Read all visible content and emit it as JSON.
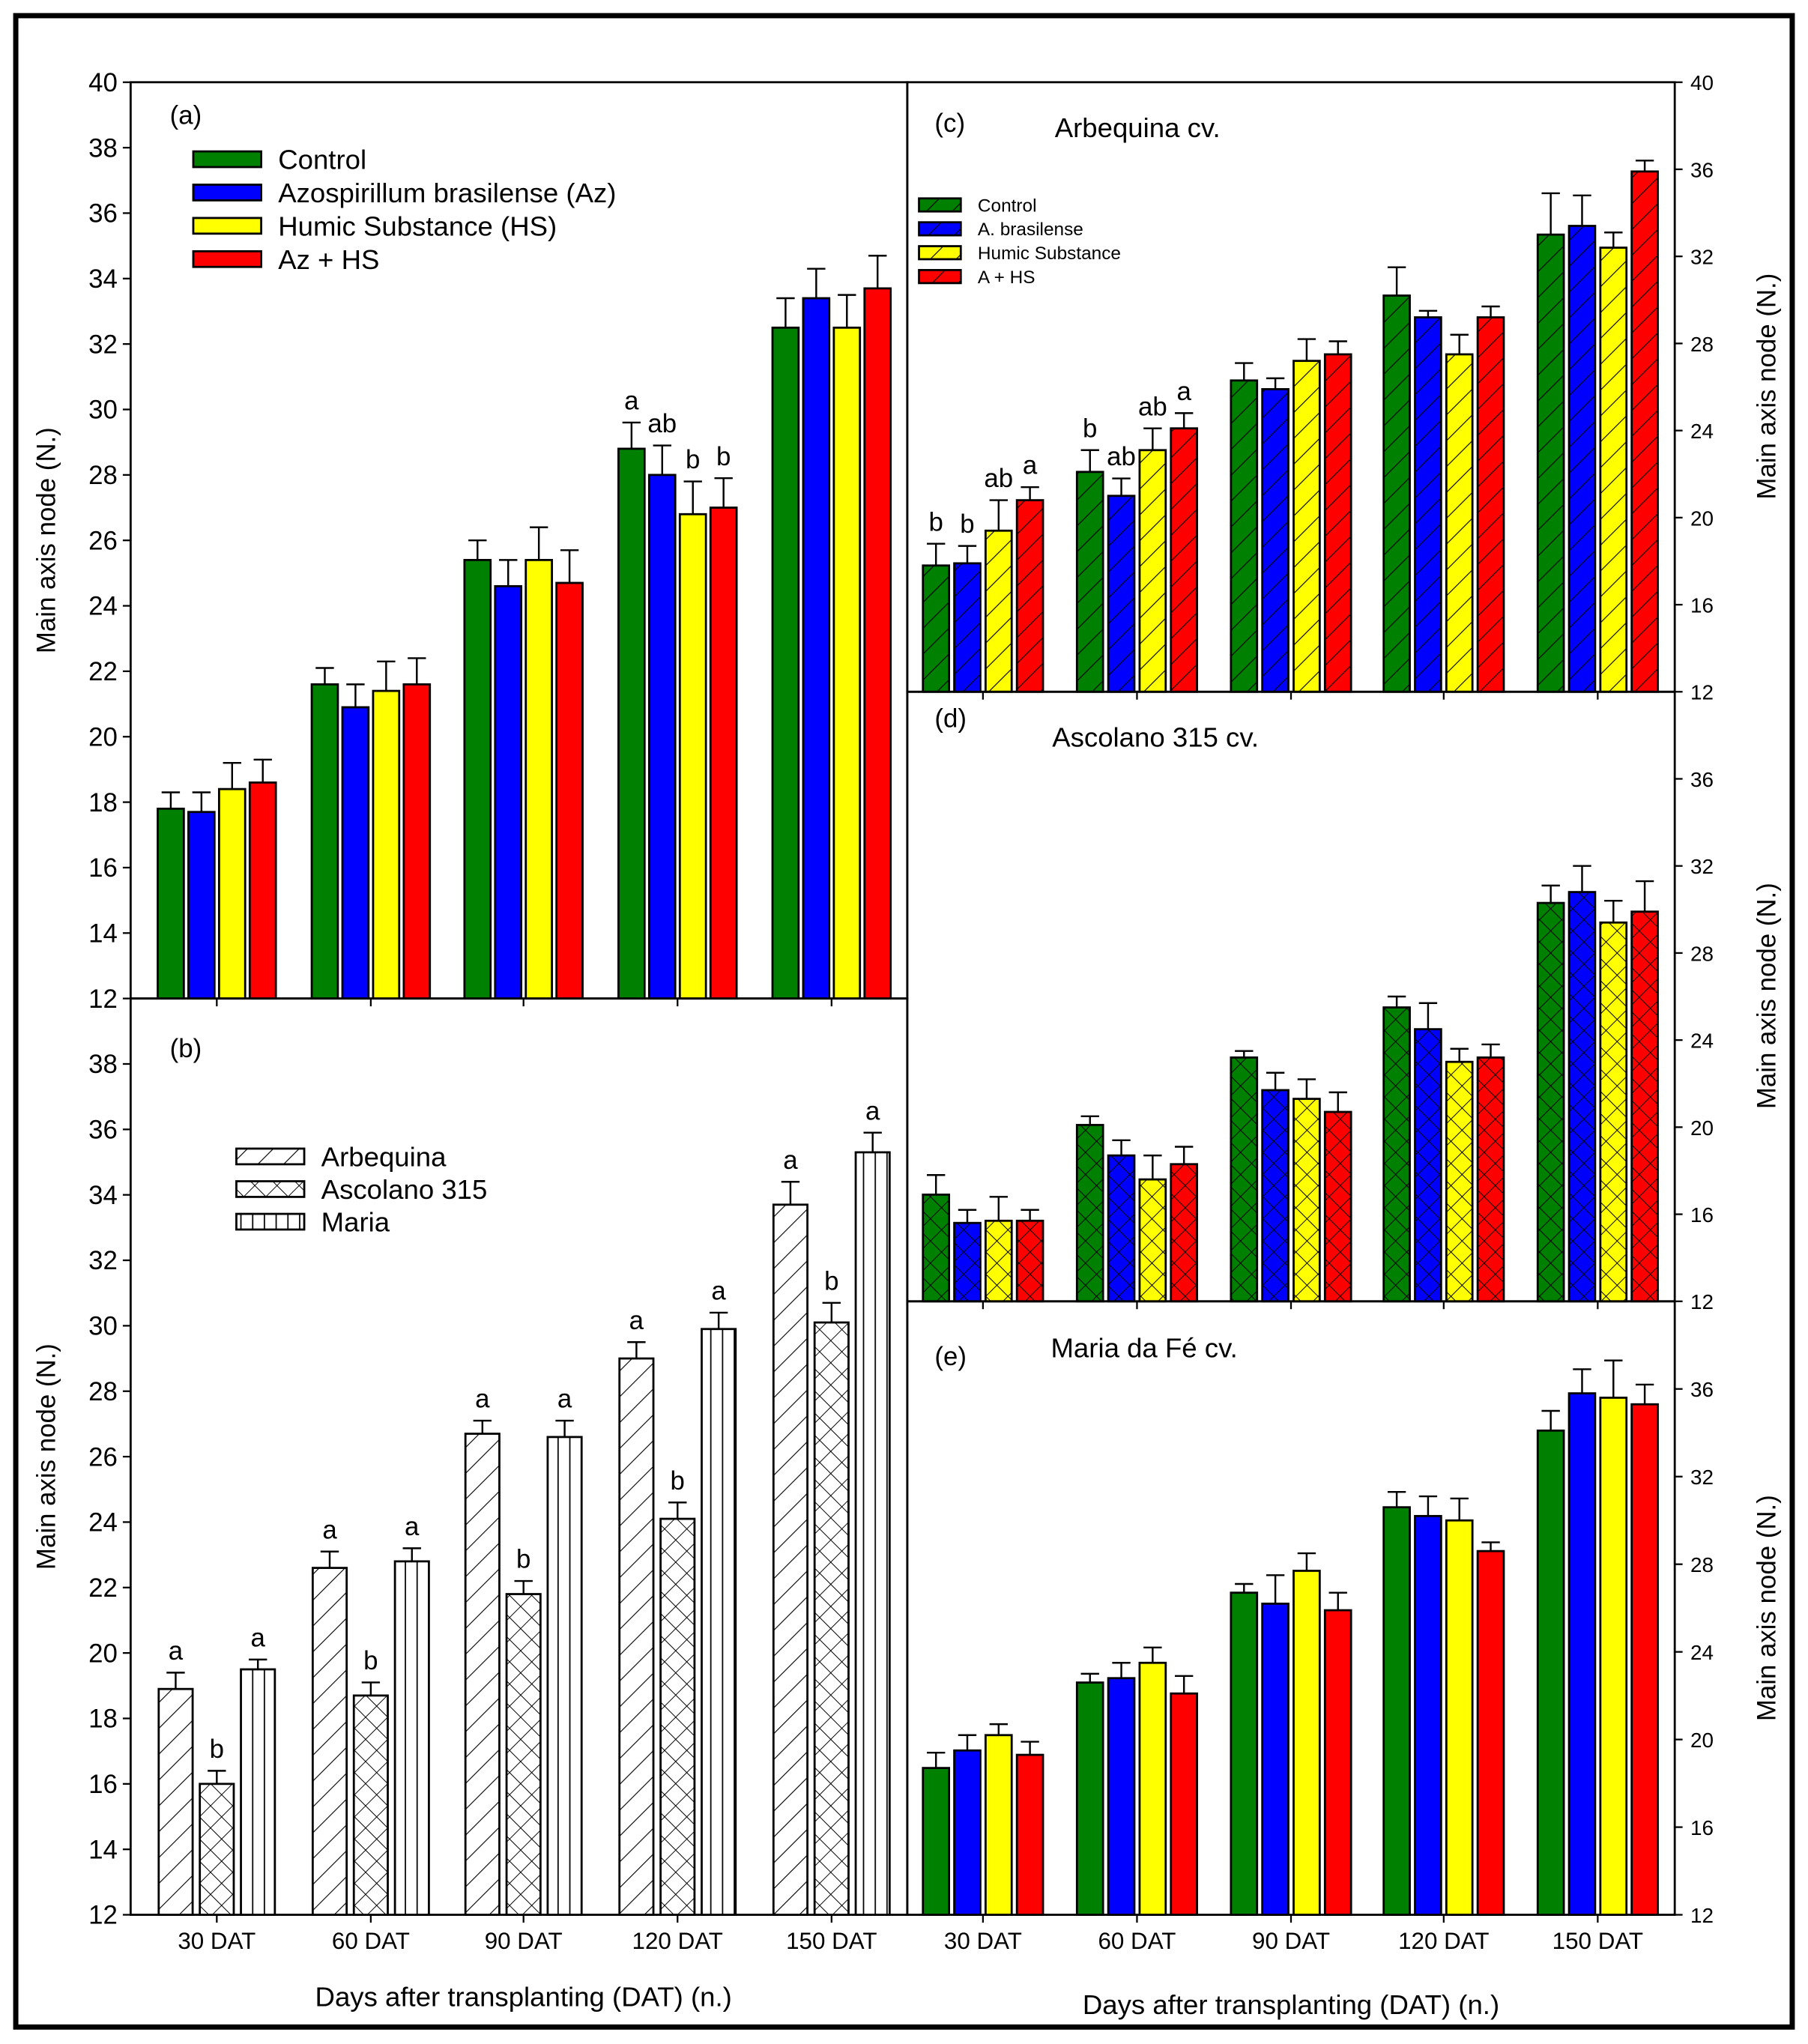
{
  "chart_data": [
    {
      "panel": "a",
      "type": "bar",
      "label": "(a)",
      "title": "",
      "ylabel": "Main axis node (N.)",
      "xlabel": "",
      "ylim": [
        12,
        40
      ],
      "yticks": [
        12,
        14,
        16,
        18,
        20,
        22,
        24,
        26,
        28,
        30,
        32,
        34,
        36,
        38,
        40
      ],
      "categories": [
        "30 DAT",
        "60 DAT",
        "90 DAT",
        "120 DAT",
        "150 DAT"
      ],
      "pattern": "solid",
      "legend": [
        "Control",
        "Azospirillum brasilense (Az)",
        "Humic Substance (HS)",
        "Az + HS"
      ],
      "series": [
        {
          "name": "Control",
          "color": "#008000",
          "values": [
            17.8,
            21.6,
            25.4,
            28.8,
            32.5
          ],
          "errors": [
            0.5,
            0.5,
            0.6,
            0.8,
            0.9
          ],
          "letters": [
            "",
            "",
            "",
            "a",
            ""
          ]
        },
        {
          "name": "Azospirillum brasilense (Az)",
          "color": "#0000ff",
          "values": [
            17.7,
            20.9,
            24.6,
            28.0,
            33.4
          ],
          "errors": [
            0.6,
            0.7,
            0.8,
            0.9,
            0.9
          ],
          "letters": [
            "",
            "",
            "",
            "ab",
            ""
          ]
        },
        {
          "name": "Humic Substance (HS)",
          "color": "#ffff00",
          "values": [
            18.4,
            21.4,
            25.4,
            26.8,
            32.5
          ],
          "errors": [
            0.8,
            0.9,
            1.0,
            1.0,
            1.0
          ],
          "letters": [
            "",
            "",
            "",
            "b",
            ""
          ]
        },
        {
          "name": "Az + HS",
          "color": "#ff0000",
          "values": [
            18.6,
            21.6,
            24.7,
            27.0,
            33.7
          ],
          "errors": [
            0.7,
            0.8,
            1.0,
            0.9,
            1.0
          ],
          "letters": [
            "",
            "",
            "",
            "b",
            ""
          ]
        }
      ]
    },
    {
      "panel": "b",
      "type": "bar",
      "label": "(b)",
      "title": "",
      "ylabel": "Main axis node (N.)",
      "xlabel": "Days after transplanting (DAT) (n.)",
      "ylim": [
        12,
        40
      ],
      "yticks": [
        12,
        14,
        16,
        18,
        20,
        22,
        24,
        26,
        28,
        30,
        32,
        34,
        36,
        38
      ],
      "categories": [
        "30 DAT",
        "60 DAT",
        "90 DAT",
        "120 DAT",
        "150 DAT"
      ],
      "legend": [
        "Arbequina",
        "Ascolano 315",
        "Maria"
      ],
      "series": [
        {
          "name": "Arbequina",
          "color": "#ffffff",
          "pattern": "diag",
          "values": [
            18.9,
            22.6,
            26.7,
            29.0,
            33.7
          ],
          "errors": [
            0.5,
            0.5,
            0.4,
            0.5,
            0.7
          ],
          "letters": [
            "a",
            "a",
            "a",
            "a",
            "a"
          ]
        },
        {
          "name": "Ascolano 315",
          "color": "#ffffff",
          "pattern": "cross",
          "values": [
            16.0,
            18.7,
            21.8,
            24.1,
            30.1
          ],
          "errors": [
            0.4,
            0.4,
            0.4,
            0.5,
            0.6
          ],
          "letters": [
            "b",
            "b",
            "b",
            "b",
            "b"
          ]
        },
        {
          "name": "Maria",
          "color": "#ffffff",
          "pattern": "vert",
          "values": [
            19.5,
            22.8,
            26.6,
            29.9,
            35.3
          ],
          "errors": [
            0.3,
            0.4,
            0.5,
            0.5,
            0.6
          ],
          "letters": [
            "a",
            "a",
            "a",
            "a",
            "a"
          ]
        }
      ]
    },
    {
      "panel": "c",
      "type": "bar",
      "label": "(c)",
      "title": "Arbequina cv.",
      "ylabel": "Main axis node (N.)",
      "xlabel": "",
      "ylim": [
        12,
        40
      ],
      "yticks": [
        12,
        16,
        20,
        24,
        28,
        32,
        36,
        40
      ],
      "categories": [
        "30 DAT",
        "60 DAT",
        "90 DAT",
        "120 DAT",
        "150 DAT"
      ],
      "pattern": "diag",
      "legend": [
        "Control",
        "A. brasilense",
        "Humic Substance",
        "A + HS"
      ],
      "series": [
        {
          "name": "Control",
          "color": "#008000",
          "values": [
            17.8,
            22.1,
            26.3,
            30.2,
            33.0
          ],
          "errors": [
            1.0,
            1.0,
            0.8,
            1.3,
            1.9
          ],
          "letters": [
            "b",
            "b",
            "",
            "",
            ""
          ]
        },
        {
          "name": "A. brasilense",
          "color": "#0000ff",
          "values": [
            17.9,
            21.0,
            25.9,
            29.2,
            33.4
          ],
          "errors": [
            0.8,
            0.8,
            0.5,
            0.3,
            1.4
          ],
          "letters": [
            "b",
            "ab",
            "",
            "",
            ""
          ]
        },
        {
          "name": "Humic Substance",
          "color": "#ffff00",
          "values": [
            19.4,
            23.1,
            27.2,
            27.5,
            32.4
          ],
          "errors": [
            1.4,
            1.0,
            1.0,
            0.9,
            0.7
          ],
          "letters": [
            "ab",
            "ab",
            "",
            "",
            ""
          ]
        },
        {
          "name": "A + HS",
          "color": "#ff0000",
          "values": [
            20.8,
            24.1,
            27.5,
            29.2,
            35.9
          ],
          "errors": [
            0.6,
            0.7,
            0.6,
            0.5,
            0.5
          ],
          "letters": [
            "a",
            "a",
            "",
            "",
            ""
          ]
        }
      ]
    },
    {
      "panel": "d",
      "type": "bar",
      "label": "(d)",
      "title": "Ascolano 315 cv.",
      "ylabel": "Main axis node (N.)",
      "xlabel": "",
      "ylim": [
        12,
        40
      ],
      "yticks": [
        12,
        16,
        20,
        24,
        28,
        32,
        36
      ],
      "categories": [
        "30 DAT",
        "60 DAT",
        "90 DAT",
        "120 DAT",
        "150 DAT"
      ],
      "pattern": "cross",
      "series": [
        {
          "name": "Control",
          "color": "#008000",
          "values": [
            16.9,
            20.1,
            23.2,
            25.5,
            30.3
          ],
          "errors": [
            0.9,
            0.4,
            0.3,
            0.5,
            0.8
          ],
          "letters": [
            "",
            "",
            "",
            "",
            ""
          ]
        },
        {
          "name": "A. brasilense",
          "color": "#0000ff",
          "values": [
            15.6,
            18.7,
            21.7,
            24.5,
            30.8
          ],
          "errors": [
            0.6,
            0.7,
            0.8,
            1.2,
            1.2
          ],
          "letters": [
            "",
            "",
            "",
            "",
            ""
          ]
        },
        {
          "name": "Humic Substance",
          "color": "#ffff00",
          "values": [
            15.7,
            17.6,
            21.3,
            23.0,
            29.4
          ],
          "errors": [
            1.1,
            1.1,
            0.9,
            0.6,
            1.0
          ],
          "letters": [
            "",
            "",
            "",
            "",
            ""
          ]
        },
        {
          "name": "A + HS",
          "color": "#ff0000",
          "values": [
            15.7,
            18.3,
            20.7,
            23.2,
            29.9
          ],
          "errors": [
            0.5,
            0.8,
            0.9,
            0.6,
            1.4
          ],
          "letters": [
            "",
            "",
            "",
            "",
            ""
          ]
        }
      ]
    },
    {
      "panel": "e",
      "type": "bar",
      "label": "(e)",
      "title": "Maria da Fé cv.",
      "ylabel": "Main axis node (N.)",
      "xlabel": "Days after transplanting (DAT) (n.)",
      "ylim": [
        12,
        40
      ],
      "yticks": [
        12,
        16,
        20,
        24,
        28,
        32,
        36
      ],
      "categories": [
        "30 DAT",
        "60 DAT",
        "90 DAT",
        "120 DAT",
        "150 DAT"
      ],
      "pattern": "solid",
      "series": [
        {
          "name": "Control",
          "color": "#008000",
          "values": [
            18.7,
            22.6,
            26.7,
            30.6,
            34.1
          ],
          "errors": [
            0.7,
            0.4,
            0.4,
            0.7,
            0.9
          ],
          "letters": [
            "",
            "",
            "",
            "",
            ""
          ]
        },
        {
          "name": "A. brasilense",
          "color": "#0000ff",
          "values": [
            19.5,
            22.8,
            26.2,
            30.2,
            35.8
          ],
          "errors": [
            0.7,
            0.7,
            1.3,
            0.9,
            1.1
          ],
          "letters": [
            "",
            "",
            "",
            "",
            ""
          ]
        },
        {
          "name": "Humic Substance",
          "color": "#ffff00",
          "values": [
            20.2,
            23.5,
            27.7,
            30.0,
            35.6
          ],
          "errors": [
            0.5,
            0.7,
            0.8,
            1.0,
            1.7
          ],
          "letters": [
            "",
            "",
            "",
            "",
            ""
          ]
        },
        {
          "name": "A + HS",
          "color": "#ff0000",
          "values": [
            19.3,
            22.1,
            25.9,
            28.6,
            35.3
          ],
          "errors": [
            0.6,
            0.8,
            0.8,
            0.4,
            0.9
          ],
          "letters": [
            "",
            "",
            "",
            "",
            ""
          ]
        }
      ]
    }
  ]
}
